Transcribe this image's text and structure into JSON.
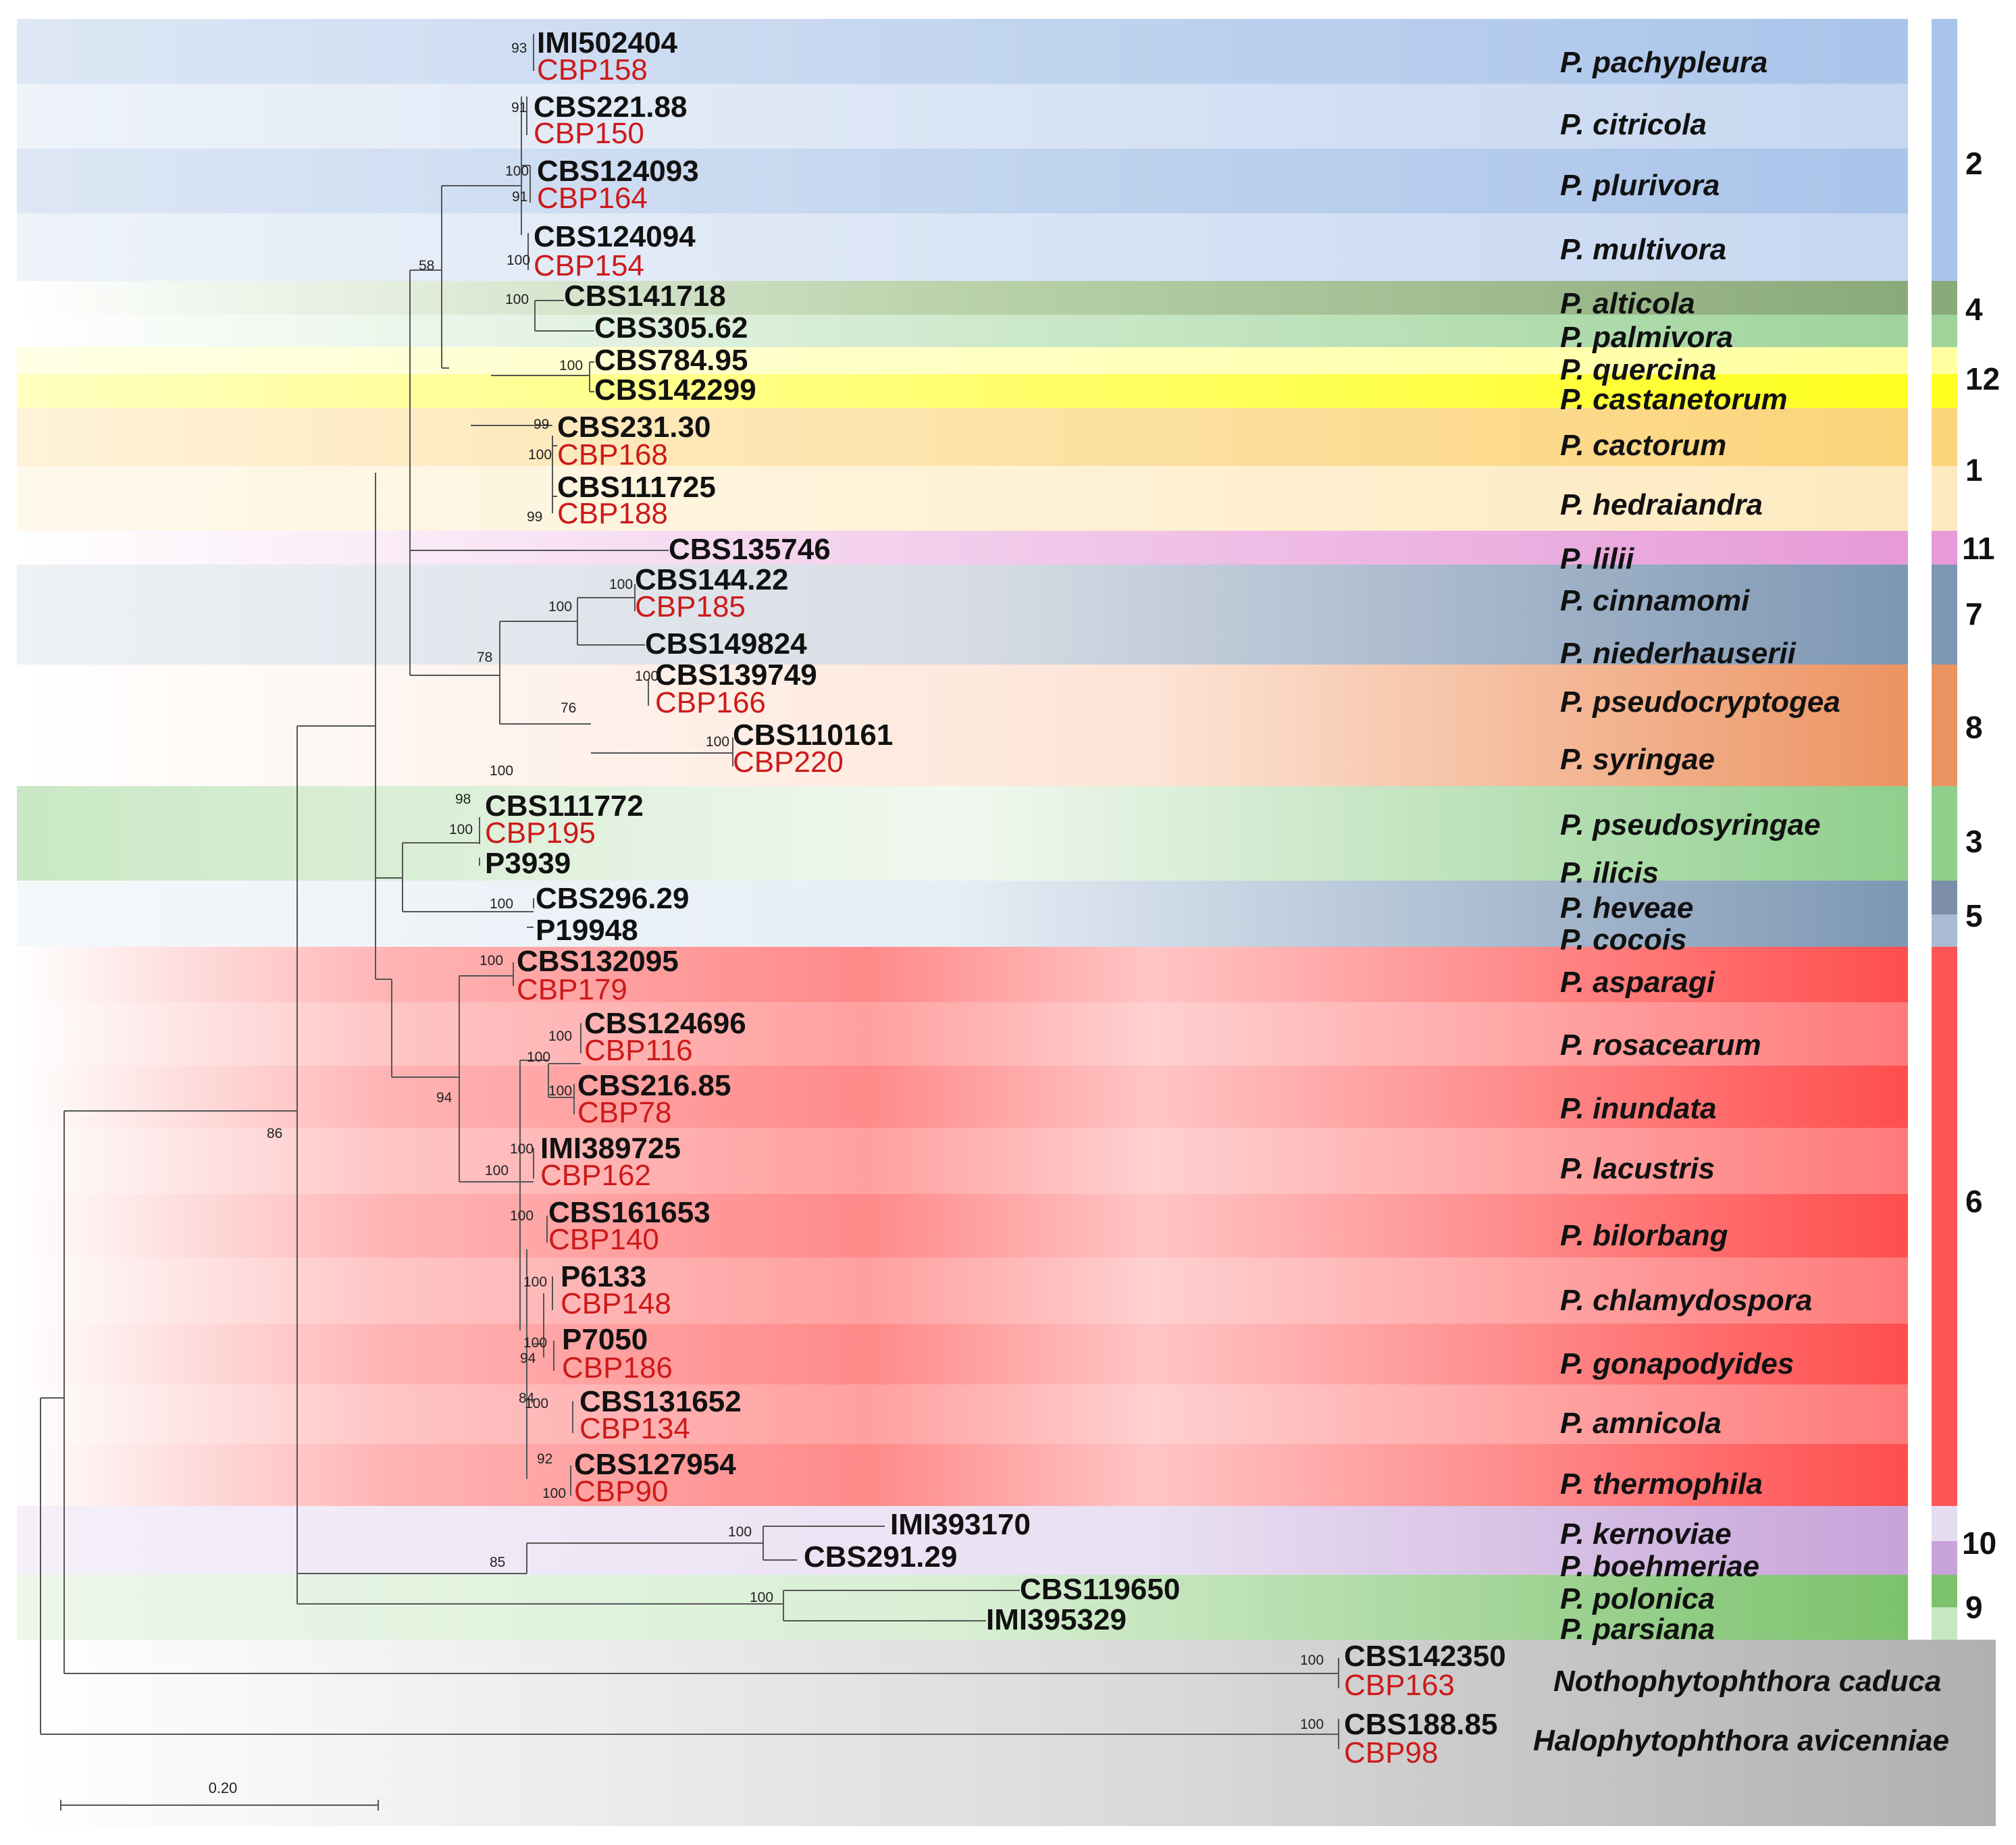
{
  "colors": {
    "blue": "#a9c4ea",
    "green": "#8fcf8c",
    "darkgreen": "#8aaa7a",
    "yellow": "#ffff20",
    "lightyellow": "#ffffa0",
    "orange": "#fbd47a",
    "cream": "#fdeac0",
    "pink": "#e69ad8",
    "slate": "#7d97b4",
    "salmon": "#ec9362",
    "red": "#ff5555",
    "lavender": "#d8c4e8",
    "purple": "#c7a3d9",
    "polonica": "#7cc26c",
    "grey": "#c8c8c8",
    "strain_red": "#cc1a1a"
  },
  "species": [
    {
      "name": "P. pachypleura",
      "reference": "IMI502404",
      "isolate": "CBP158"
    },
    {
      "name": "P. citricola",
      "reference": "CBS221.88",
      "isolate": "CBP150"
    },
    {
      "name": "P. plurivora",
      "reference": "CBS124093",
      "isolate": "CBP164"
    },
    {
      "name": "P. multivora",
      "reference": "CBS124094",
      "isolate": "CBP154"
    },
    {
      "name": "P. alticola",
      "reference": "CBS141718",
      "isolate": null
    },
    {
      "name": "P. palmivora",
      "reference": "CBS305.62",
      "isolate": null
    },
    {
      "name": "P. quercina",
      "reference": "CBS784.95",
      "isolate": null
    },
    {
      "name": "P. castanetorum",
      "reference": "CBS142299",
      "isolate": null
    },
    {
      "name": "P. cactorum",
      "reference": "CBS231.30",
      "isolate": "CBP168"
    },
    {
      "name": "P. hedraiandra",
      "reference": "CBS111725",
      "isolate": "CBP188"
    },
    {
      "name": "P. lilii",
      "reference": "CBS135746",
      "isolate": null
    },
    {
      "name": "P. cinnamomi",
      "reference": "CBS144.22",
      "isolate": "CBP185"
    },
    {
      "name": "P. niederhauserii",
      "reference": "CBS149824",
      "isolate": null
    },
    {
      "name": "P. pseudocryptogea",
      "reference": "CBS139749",
      "isolate": "CBP166"
    },
    {
      "name": "P. syringae",
      "reference": "CBS110161",
      "isolate": "CBP220"
    },
    {
      "name": "P. pseudosyringae",
      "reference": "CBS111772",
      "isolate": "CBP195"
    },
    {
      "name": "P. ilicis",
      "reference": "P3939",
      "isolate": null
    },
    {
      "name": "P. heveae",
      "reference": "CBS296.29",
      "isolate": null
    },
    {
      "name": "P. cocois",
      "reference": "P19948",
      "isolate": null
    },
    {
      "name": "P. asparagi",
      "reference": "CBS132095",
      "isolate": "CBP179"
    },
    {
      "name": "P. rosacearum",
      "reference": "CBS124696",
      "isolate": "CBP116"
    },
    {
      "name": "P. inundata",
      "reference": "CBS216.85",
      "isolate": "CBP78"
    },
    {
      "name": "P. lacustris",
      "reference": "IMI389725",
      "isolate": "CBP162"
    },
    {
      "name": "P. bilorbang",
      "reference": "CBS161653",
      "isolate": "CBP140"
    },
    {
      "name": "P. chlamydospora",
      "reference": "P6133",
      "isolate": "CBP148"
    },
    {
      "name": "P. gonapodyides",
      "reference": "P7050",
      "isolate": "CBP186"
    },
    {
      "name": "P. amnicola",
      "reference": "CBS131652",
      "isolate": "CBP134"
    },
    {
      "name": "P. thermophila",
      "reference": "CBS127954",
      "isolate": "CBP90"
    },
    {
      "name": "P. kernoviae",
      "reference": "IMI393170",
      "isolate": null
    },
    {
      "name": "P. boehmeriae",
      "reference": "CBS291.29",
      "isolate": null
    },
    {
      "name": "P. polonica",
      "reference": "CBS119650",
      "isolate": null
    },
    {
      "name": "P. parsiana",
      "reference": "IMI395329",
      "isolate": null
    },
    {
      "name": "Nothophytophthora caduca",
      "reference": "CBS142350",
      "isolate": "CBP163"
    },
    {
      "name": "Halophytophthora avicenniae",
      "reference": "CBS188.85",
      "isolate": "CBP98"
    }
  ],
  "clades": [
    "2",
    "4",
    "12",
    "1",
    "11",
    "7",
    "8",
    "3",
    "5",
    "6",
    "10",
    "9"
  ],
  "bootstrap": [
    "93",
    "91",
    "100",
    "91",
    "100",
    "58",
    "100",
    "100",
    "99",
    "100",
    "99",
    "100",
    "100",
    "78",
    "76",
    "100",
    "100",
    "100",
    "98",
    "100",
    "100",
    "100",
    "100",
    "100",
    "100",
    "94",
    "100",
    "100",
    "100",
    "100",
    "100",
    "94",
    "100",
    "84",
    "92",
    "100",
    "86",
    "100",
    "85",
    "100",
    "100",
    "100"
  ],
  "scale_bar": "0.20"
}
